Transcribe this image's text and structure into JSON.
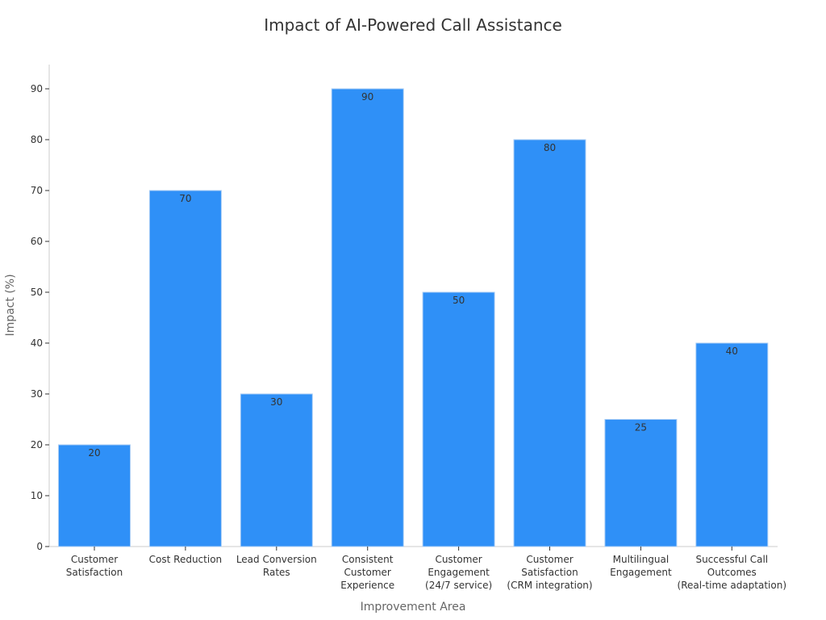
{
  "chart_data": {
    "type": "bar",
    "title": "Impact of AI-Powered Call Assistance",
    "xlabel": "Improvement Area",
    "ylabel": "Impact (%)",
    "ylim": [
      0,
      95
    ],
    "yticks": [
      0,
      10,
      20,
      30,
      40,
      50,
      60,
      70,
      80,
      90
    ],
    "grid": false,
    "categories": [
      [
        "Customer",
        "Satisfaction"
      ],
      [
        "Cost Reduction"
      ],
      [
        "Lead Conversion",
        "Rates"
      ],
      [
        "Consistent",
        "Customer",
        "Experience"
      ],
      [
        "Customer",
        "Engagement",
        "(24/7 service)"
      ],
      [
        "Customer",
        "Satisfaction",
        "(CRM integration)"
      ],
      [
        "Multilingual",
        "Engagement"
      ],
      [
        "Successful Call",
        "Outcomes",
        "(Real-time adaptation)"
      ]
    ],
    "values": [
      20,
      70,
      30,
      90,
      50,
      80,
      25,
      40
    ],
    "bar_color": "#2f90f7",
    "bar_edge_color": "#a9cdf5"
  }
}
